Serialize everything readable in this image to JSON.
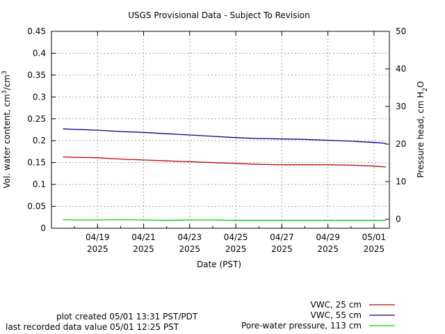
{
  "chart_data": {
    "type": "line",
    "title": "USGS Provisional Data - Subject To Revision",
    "xlabel": "Date (PST)",
    "ylabel": "Vol. water content, cm³/cm³",
    "ylabel_parts": [
      "Vol. water content, cm",
      "3",
      "/cm",
      "3"
    ],
    "y2label": "Pressure head, cm H₂O",
    "y2label_parts": [
      "Pressure head, cm H",
      "2",
      "O"
    ],
    "xlim": [
      "2025-04-17",
      "2025-05-01T16:00"
    ],
    "ylim": [
      0,
      0.45
    ],
    "y2lim": [
      -2.4,
      50
    ],
    "yticks": [
      "0",
      "0.05",
      "0.1",
      "0.15",
      "0.2",
      "0.25",
      "0.3",
      "0.35",
      "0.4",
      "0.45"
    ],
    "y2ticks": [
      "0",
      "10",
      "20",
      "30",
      "40",
      "50"
    ],
    "xticks": [
      {
        "date": "2025-04-19",
        "line1": "04/19",
        "line2": "2025"
      },
      {
        "date": "2025-04-21",
        "line1": "04/21",
        "line2": "2025"
      },
      {
        "date": "2025-04-23",
        "line1": "04/23",
        "line2": "2025"
      },
      {
        "date": "2025-04-25",
        "line1": "04/25",
        "line2": "2025"
      },
      {
        "date": "2025-04-27",
        "line1": "04/27",
        "line2": "2025"
      },
      {
        "date": "2025-04-29",
        "line1": "04/29",
        "line2": "2025"
      },
      {
        "date": "2025-05-01",
        "line1": "05/01",
        "line2": "2025"
      }
    ],
    "grid": true,
    "legend_position": "bottom-right",
    "series": [
      {
        "name": "VWC, 25 cm",
        "axis": "left",
        "color": "#c00000",
        "x": [
          "2025-04-17T12:00",
          "2025-04-18",
          "2025-04-19",
          "2025-04-20",
          "2025-04-21",
          "2025-04-22",
          "2025-04-23",
          "2025-04-24",
          "2025-04-25",
          "2025-04-26",
          "2025-04-27",
          "2025-04-28",
          "2025-04-29",
          "2025-04-30",
          "2025-05-01",
          "2025-05-01T12:25"
        ],
        "y": [
          0.163,
          0.162,
          0.161,
          0.158,
          0.156,
          0.154,
          0.152,
          0.15,
          0.148,
          0.146,
          0.145,
          0.145,
          0.145,
          0.144,
          0.142,
          0.14
        ]
      },
      {
        "name": "VWC, 55 cm",
        "axis": "left",
        "color": "#00008b",
        "x": [
          "2025-04-17T12:00",
          "2025-04-18",
          "2025-04-19",
          "2025-04-20",
          "2025-04-21",
          "2025-04-22",
          "2025-04-23",
          "2025-04-24",
          "2025-04-25",
          "2025-04-26",
          "2025-04-27",
          "2025-04-28",
          "2025-04-29",
          "2025-04-30",
          "2025-05-01",
          "2025-05-01T12:25"
        ],
        "y": [
          0.227,
          0.226,
          0.224,
          0.221,
          0.219,
          0.216,
          0.213,
          0.21,
          0.207,
          0.205,
          0.204,
          0.203,
          0.201,
          0.199,
          0.196,
          0.194
        ]
      },
      {
        "name": "Pore-water pressure, 113 cm",
        "axis": "right",
        "color": "#00cc00",
        "x": [
          "2025-04-17T12:00",
          "2025-04-18",
          "2025-04-19",
          "2025-04-20",
          "2025-04-21",
          "2025-04-22",
          "2025-04-23",
          "2025-04-24",
          "2025-04-25",
          "2025-04-26",
          "2025-04-27",
          "2025-04-28",
          "2025-04-29",
          "2025-04-30",
          "2025-05-01",
          "2025-05-01T12:25"
        ],
        "y": [
          -0.1,
          -0.2,
          -0.2,
          -0.1,
          -0.2,
          -0.3,
          -0.2,
          -0.2,
          -0.3,
          -0.3,
          -0.3,
          -0.3,
          -0.3,
          -0.3,
          -0.3,
          -0.3
        ]
      }
    ]
  },
  "footer": {
    "created": "plot created 05/01 13:31 PST/PDT",
    "last_value": "last recorded data value 05/01 12:25 PST"
  }
}
